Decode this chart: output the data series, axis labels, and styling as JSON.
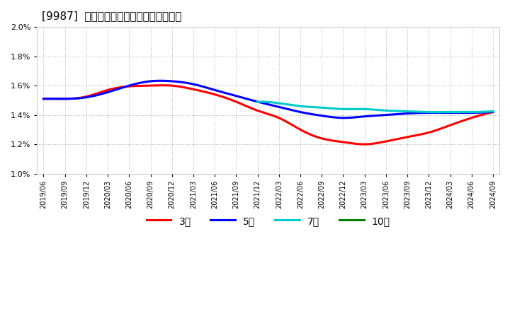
{
  "title": "[9987]  経常利益マージンの平均値の推移",
  "background_color": "#ffffff",
  "plot_bg_color": "#ffffff",
  "grid_color": "#aaaaaa",
  "ylim": [
    0.01,
    0.02
  ],
  "yticks": [
    0.01,
    0.012,
    0.014,
    0.016,
    0.018,
    0.02
  ],
  "legend": [
    {
      "label": "3年",
      "color": "#ff0000"
    },
    {
      "label": "5年",
      "color": "#0000ff"
    },
    {
      "label": "7年",
      "color": "#00cccc"
    },
    {
      "label": "10年",
      "color": "#008000"
    }
  ],
  "x_labels": [
    "2019/06",
    "2019/09",
    "2019/12",
    "2020/03",
    "2020/06",
    "2020/09",
    "2020/12",
    "2021/03",
    "2021/06",
    "2021/09",
    "2021/12",
    "2022/03",
    "2022/06",
    "2022/09",
    "2022/12",
    "2023/03",
    "2023/06",
    "2023/09",
    "2023/12",
    "2024/03",
    "2024/06",
    "2024/09"
  ],
  "series_3y": {
    "color": "#ff0000",
    "x": [
      0,
      1,
      2,
      3,
      4,
      5,
      6,
      7,
      8,
      9,
      10,
      11,
      12,
      13,
      14,
      15,
      16,
      17,
      18,
      19,
      20,
      21
    ],
    "y": [
      0.0151,
      0.0151,
      0.01525,
      0.0157,
      0.01595,
      0.016,
      0.016,
      0.01575,
      0.0154,
      0.0149,
      0.0143,
      0.0138,
      0.013,
      0.0124,
      0.01215,
      0.012,
      0.0122,
      0.0125,
      0.0128,
      0.0133,
      0.0138,
      0.0142
    ]
  },
  "series_5y": {
    "color": "#0000ff",
    "x": [
      0,
      1,
      2,
      3,
      4,
      5,
      6,
      7,
      8,
      9,
      10,
      11,
      12,
      13,
      14,
      15,
      16,
      17,
      18,
      19,
      20,
      21
    ],
    "y": [
      0.0151,
      0.0151,
      0.0152,
      0.01555,
      0.016,
      0.0163,
      0.0163,
      0.0161,
      0.0157,
      0.0153,
      0.0149,
      0.01455,
      0.0142,
      0.01395,
      0.0138,
      0.0139,
      0.014,
      0.0141,
      0.01415,
      0.01415,
      0.01415,
      0.0142
    ]
  },
  "series_7y": {
    "color": "#00cccc",
    "x": [
      10,
      11,
      12,
      13,
      14,
      15,
      16,
      17,
      18,
      19,
      20,
      21
    ],
    "y": [
      0.0149,
      0.0148,
      0.0146,
      0.0145,
      0.0144,
      0.0144,
      0.0143,
      0.01425,
      0.0142,
      0.0142,
      0.0142,
      0.01425
    ]
  },
  "series_10y": {
    "color": "#008000",
    "x": [],
    "y": []
  }
}
